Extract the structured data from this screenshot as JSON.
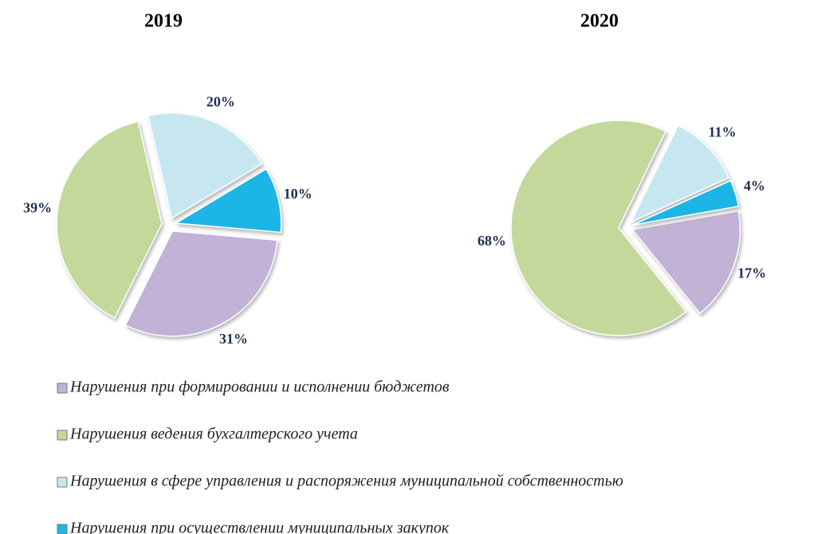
{
  "chart_data": [
    {
      "type": "pie",
      "title": "2019",
      "values": [
        31,
        39,
        20,
        10
      ],
      "value_labels": [
        "31%",
        "39%",
        "20%",
        "10%"
      ]
    },
    {
      "type": "pie",
      "title": "2020",
      "values": [
        17,
        68,
        11,
        4
      ],
      "value_labels": [
        "17%",
        "68%",
        "11%",
        "4%"
      ]
    }
  ],
  "legend": {
    "categories": [
      "Нарушения при формировании и исполнении бюджетов",
      "Нарушения ведения бухгалтерского учета",
      "Нарушения в сфере управления и распоряжения муниципальной собственностью",
      "Нарушения при осуществлении муниципальных закупок"
    ],
    "colors": [
      "#c2b2d6",
      "#c5d89c",
      "#c7e7f0",
      "#1db6e6"
    ]
  }
}
